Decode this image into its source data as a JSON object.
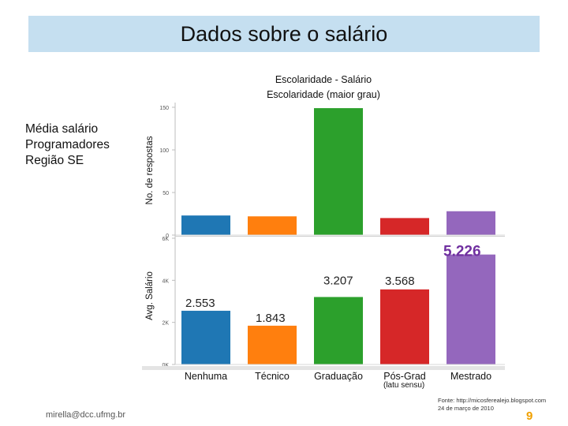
{
  "slide": {
    "title": "Dados sobre o salário",
    "side_label": [
      "Média salário",
      "Programadores",
      "Região SE"
    ],
    "source_note": [
      "Fonte: http://micosferealejo.blogspot.com",
      "24 de março de 2010"
    ],
    "footer_email": "mirella@dcc.ufmg.br",
    "page_number": "9"
  },
  "chart_data": {
    "type": "bar",
    "title": "Escolaridade - Salário",
    "subtitle": "Escolaridade (maior grau)",
    "categories": [
      "Nenhuma",
      "Técnico",
      "Graduação",
      "Pós-Grad",
      "Mestrado"
    ],
    "category_sublabels": [
      "",
      "",
      "",
      "(latu sensu)",
      ""
    ],
    "colors": [
      "#1f77b4",
      "#ff7f0e",
      "#2ca02c",
      "#d62728",
      "#9467bd"
    ],
    "panels": [
      {
        "name": "responses",
        "ylabel": "No. de respostas",
        "ylim": [
          0,
          150
        ],
        "yticks": [
          0,
          50,
          100,
          150
        ],
        "ytick_labels": [
          "0",
          "50",
          "100",
          "150"
        ],
        "values": [
          23,
          22,
          149,
          20,
          28
        ]
      },
      {
        "name": "salary",
        "ylabel": "Avg. Salário",
        "ylim": [
          0,
          6000
        ],
        "yticks": [
          0,
          2000,
          4000,
          6000
        ],
        "ytick_labels": [
          "0K",
          "2K",
          "4K",
          "6K"
        ],
        "values": [
          2553,
          1843,
          3207,
          3568,
          5226
        ],
        "data_labels": [
          "2.553",
          "1.843",
          "3.207",
          "3.568",
          "5.226"
        ],
        "data_label_colors": [
          "#222222",
          "#222222",
          "#222222",
          "#222222",
          "#7030a0"
        ]
      }
    ],
    "grid": false
  }
}
